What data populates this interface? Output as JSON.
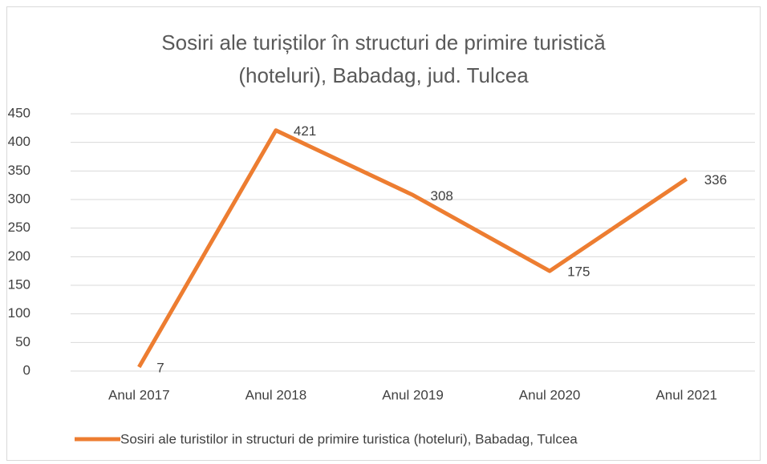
{
  "chart_data": {
    "type": "line",
    "title": [
      "Sosiri ale turiștilor în structuri de primire turistică",
      "(hoteluri), Babadag, jud. Tulcea"
    ],
    "categories": [
      "Anul 2017",
      "Anul 2018",
      "Anul 2019",
      "Anul 2020",
      "Anul 2021"
    ],
    "series": [
      {
        "name": "Sosiri ale turistilor in structuri de primire turistica (hoteluri), Babadag, Tulcea",
        "color": "#ed7d31",
        "values": [
          7,
          421,
          308,
          175,
          336
        ]
      }
    ],
    "ylim": [
      0,
      450
    ],
    "yticks": [
      0,
      50,
      100,
      150,
      200,
      250,
      300,
      350,
      400,
      450
    ],
    "grid": true,
    "legend": "bottom"
  }
}
